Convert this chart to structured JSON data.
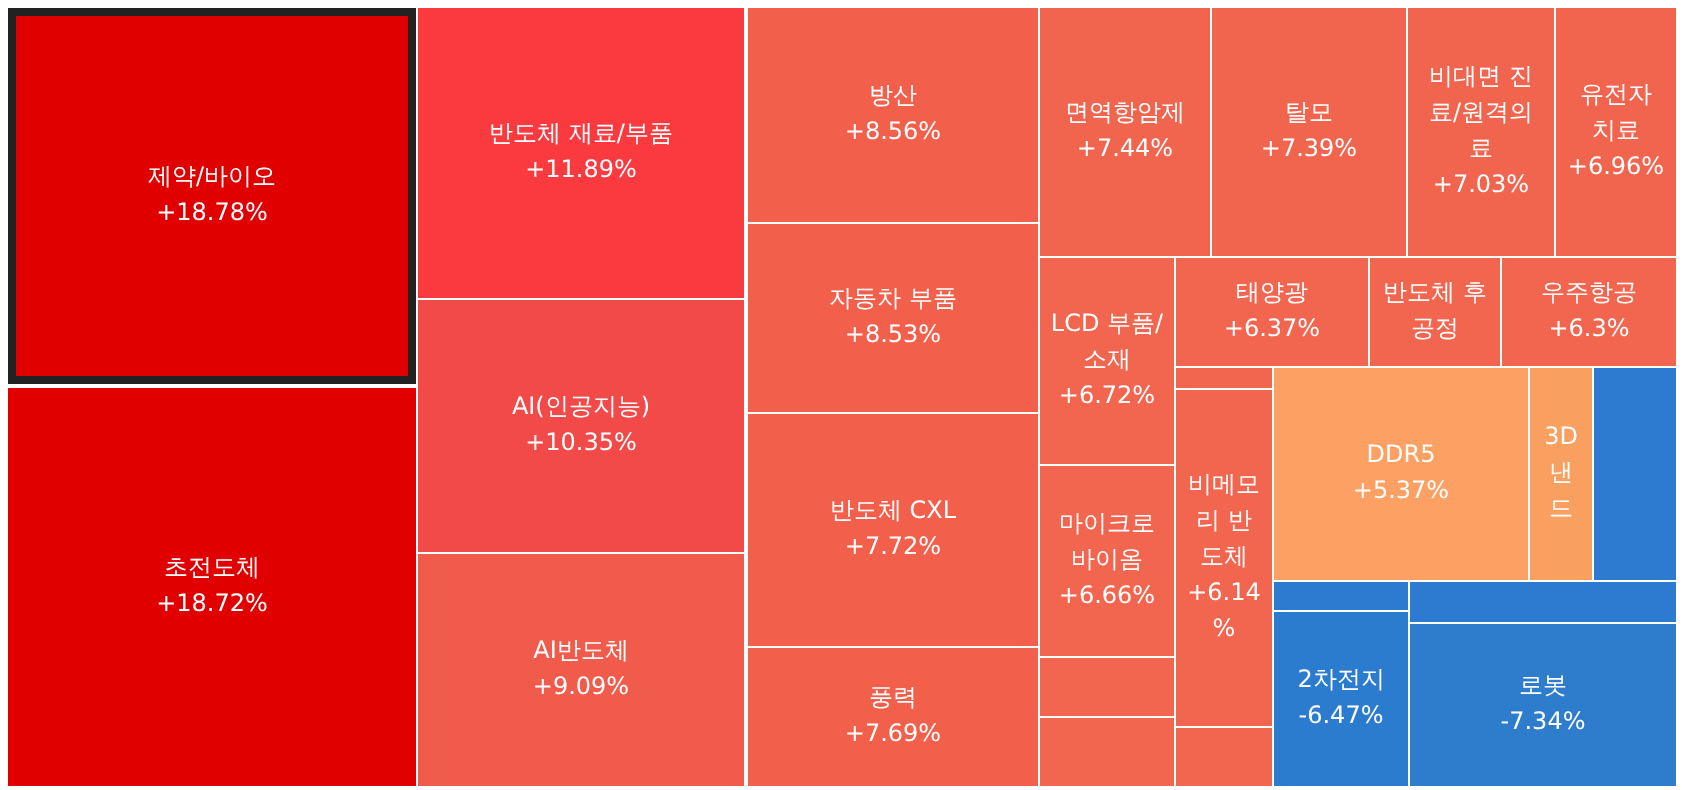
{
  "chart_data": {
    "type": "other",
    "categories": [
      "제약/바이오",
      "초전도체",
      "반도체 재료/부품",
      "AI(인공지능)",
      "AI반도체",
      "방산",
      "자동차 부품",
      "반도체 CXL",
      "풍력",
      "면역항암제",
      "탈모",
      "비대면 진료/원격의료",
      "유전자 치료",
      "LCD 부품/소재",
      "태양광",
      "반도체 후 공정",
      "우주항공",
      null,
      "마이크로바이옴",
      "비메모리 반도체",
      "DDR5",
      "3D 낸드",
      null,
      null,
      null,
      null,
      null,
      null,
      "2차전지",
      "로봇"
    ],
    "values": [
      18.78,
      18.72,
      11.89,
      10.35,
      9.09,
      8.56,
      8.53,
      7.72,
      7.69,
      7.44,
      7.39,
      7.03,
      6.96,
      6.72,
      6.37,
      null,
      6.3,
      null,
      6.66,
      6.14,
      5.37,
      null,
      null,
      null,
      null,
      null,
      null,
      null,
      -6.47,
      -7.34
    ],
    "value_labels": [
      "+18.78%",
      "+18.72%",
      "+11.89%",
      "+10.35%",
      "+9.09%",
      "+8.56%",
      "+8.53%",
      "+7.72%",
      "+7.69%",
      "+7.44%",
      "+7.39%",
      "+7.03%",
      "+6.96%",
      "+6.72%",
      "+6.37%",
      null,
      "+6.3%",
      null,
      "+6.66%",
      "+6.14%",
      "+5.37%",
      null,
      null,
      null,
      null,
      null,
      null,
      null,
      "-6.47%",
      "-7.34%"
    ],
    "colors": [
      "#e00000",
      "#e00000",
      "#fb3a40",
      "#f24a48",
      "#f15b4b",
      "#f2604c",
      "#f2604c",
      "#f2604c",
      "#f2604c",
      "#f1654e",
      "#f1654e",
      "#f1654e",
      "#f1654e",
      "#f2654f",
      "#f2654f",
      "#f2654f",
      "#f2654f",
      "#f2654f",
      "#f2654f",
      "#f2654f",
      "#fca063",
      "#f9a060",
      "#2d7bd0",
      "#f2654f",
      "#f2654f",
      "#f2654f",
      "#2d7bd0",
      "#2d7bd0",
      "#2b7bcf",
      "#2e7ccc"
    ]
  }
}
